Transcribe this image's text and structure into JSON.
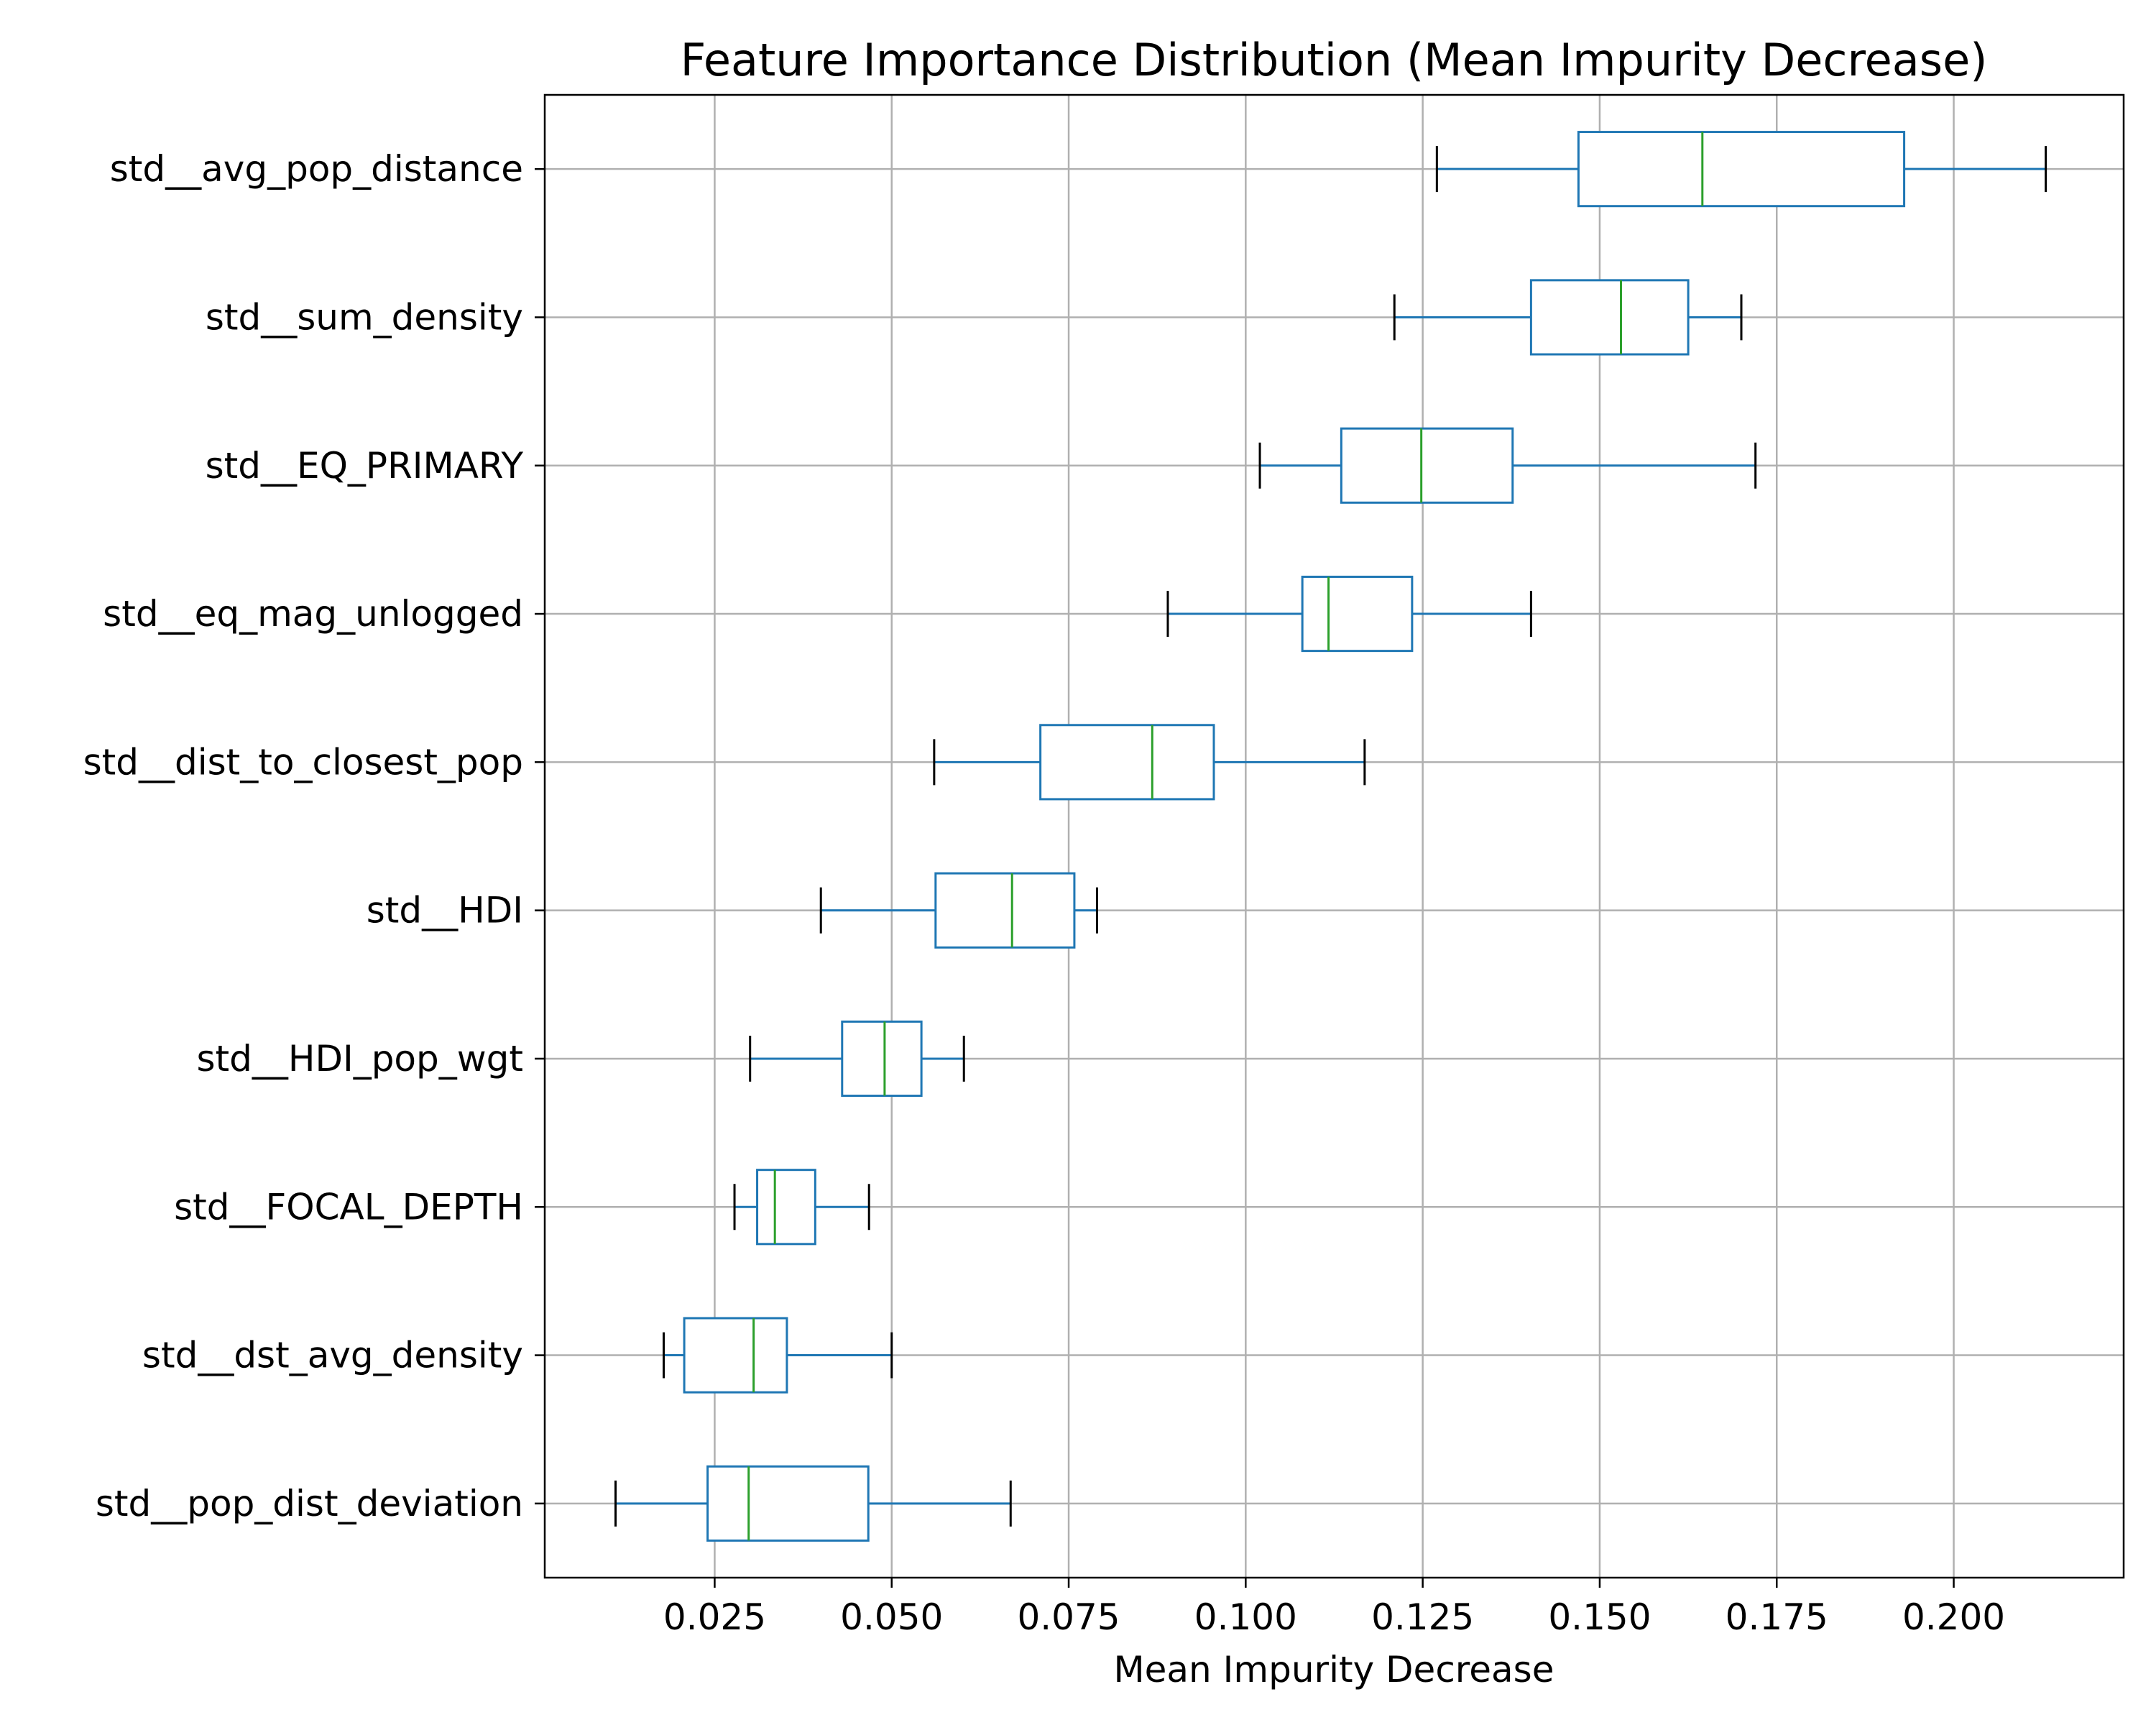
{
  "chart_data": {
    "type": "box",
    "orientation": "horizontal",
    "title": "Feature Importance Distribution (Mean Impurity Decrease)",
    "xlabel": "Mean Impurity Decrease",
    "ylabel": "",
    "xlim": [
      0.001,
      0.224
    ],
    "x_ticks": [
      "0.025",
      "0.050",
      "0.075",
      "0.100",
      "0.125",
      "0.150",
      "0.175",
      "0.200"
    ],
    "grid": true,
    "legend": "none",
    "colors": {
      "box": "#1f77b4",
      "median": "#2ca02c",
      "whisker_cap": "#000000",
      "grid": "#b0b0b0",
      "axes": "#000000"
    },
    "series": [
      {
        "category": "std__avg_pop_distance",
        "whisker_low": 0.127,
        "q1": 0.147,
        "median": 0.1645,
        "q3": 0.193,
        "whisker_high": 0.213
      },
      {
        "category": "std__sum_density",
        "whisker_low": 0.121,
        "q1": 0.1403,
        "median": 0.153,
        "q3": 0.1625,
        "whisker_high": 0.17
      },
      {
        "category": "std__EQ_PRIMARY",
        "whisker_low": 0.102,
        "q1": 0.1135,
        "median": 0.1248,
        "q3": 0.1377,
        "whisker_high": 0.172
      },
      {
        "category": "std__eq_mag_unlogged",
        "whisker_low": 0.089,
        "q1": 0.108,
        "median": 0.1117,
        "q3": 0.1235,
        "whisker_high": 0.1403
      },
      {
        "category": "std__dist_to_closest_pop",
        "whisker_low": 0.056,
        "q1": 0.071,
        "median": 0.0868,
        "q3": 0.0955,
        "whisker_high": 0.1168
      },
      {
        "category": "std__HDI",
        "whisker_low": 0.04,
        "q1": 0.0562,
        "median": 0.067,
        "q3": 0.0758,
        "whisker_high": 0.079
      },
      {
        "category": "std__HDI_pop_wgt",
        "whisker_low": 0.03,
        "q1": 0.043,
        "median": 0.049,
        "q3": 0.0542,
        "whisker_high": 0.0602
      },
      {
        "category": "std__FOCAL_DEPTH",
        "whisker_low": 0.0278,
        "q1": 0.031,
        "median": 0.0335,
        "q3": 0.0392,
        "whisker_high": 0.0468
      },
      {
        "category": "std__dst_avg_density",
        "whisker_low": 0.0178,
        "q1": 0.0207,
        "median": 0.0305,
        "q3": 0.0352,
        "whisker_high": 0.05
      },
      {
        "category": "std__pop_dist_deviation",
        "whisker_low": 0.011,
        "q1": 0.024,
        "median": 0.0298,
        "q3": 0.0467,
        "whisker_high": 0.0668
      }
    ]
  }
}
